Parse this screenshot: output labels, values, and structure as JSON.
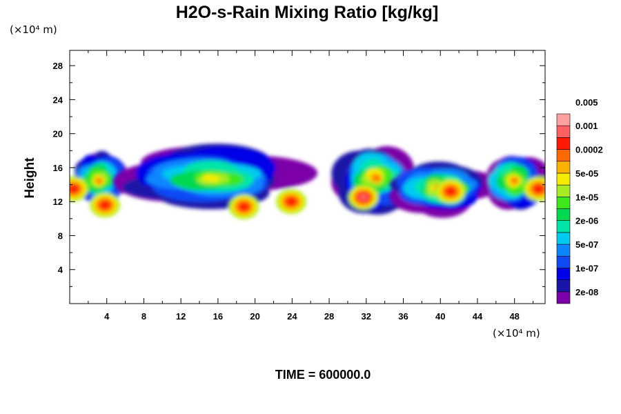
{
  "chart_data": {
    "type": "heatmap",
    "title": "H2O-s-Rain Mixing Ratio [kg/kg]",
    "x_units_label": "(×10⁴ m)",
    "y_units_label": "(×10⁴ m)",
    "ylabel": "Height",
    "xlabel": "",
    "time_label": "TIME = 600000.0",
    "x_ticks": [
      4,
      8,
      12,
      16,
      20,
      24,
      28,
      32,
      36,
      40,
      44,
      48
    ],
    "y_ticks": [
      4,
      8,
      12,
      16,
      20,
      24,
      28
    ],
    "xlim": [
      0,
      51.3
    ],
    "ylim": [
      0,
      29.8
    ],
    "grid": false,
    "colorbar": {
      "placement": "right",
      "colors": [
        "#7b00a8",
        "#1a15a8",
        "#0000e8",
        "#0f4af5",
        "#0a86ff",
        "#00caf0",
        "#00e5a8",
        "#00d850",
        "#3ce81a",
        "#a6ec22",
        "#f5ec00",
        "#fcb200",
        "#ff6a00",
        "#ff1a00",
        "#ff6060",
        "#ffa0a0"
      ],
      "labels": [
        "2e-08",
        "1e-07",
        "5e-07",
        "2e-06",
        "1e-05",
        "5e-05",
        "0.0002",
        "0.001",
        "0.005"
      ]
    },
    "regions": [
      {
        "x": [
          0,
          6.2
        ],
        "y": [
          11.2,
          17.6
        ],
        "peak_level": 12,
        "cores": [
          {
            "x": 0.4,
            "y": 13.5,
            "level": 13
          },
          {
            "x": 3.8,
            "y": 11.6,
            "level": 13
          }
        ]
      },
      {
        "x": [
          6,
          24.6
        ],
        "y": [
          10.9,
          18.5
        ],
        "peak_level": 10,
        "cores": [
          {
            "x": 18.8,
            "y": 11.4,
            "level": 13
          },
          {
            "x": 23.9,
            "y": 12.0,
            "level": 13
          }
        ]
      },
      {
        "x": [
          28.8,
          37.3
        ],
        "y": [
          11,
          18.6
        ],
        "peak_level": 12,
        "cores": [
          {
            "x": 31.7,
            "y": 12.5,
            "level": 14
          }
        ]
      },
      {
        "x": [
          34.6,
          45.3
        ],
        "y": [
          10.8,
          16.4
        ],
        "peak_level": 12,
        "cores": [
          {
            "x": 41.1,
            "y": 13.2,
            "level": 13
          }
        ]
      },
      {
        "x": [
          44.5,
          51.3
        ],
        "y": [
          11.2,
          17.8
        ],
        "peak_level": 12,
        "cores": [
          {
            "x": 50.6,
            "y": 13.5,
            "level": 13
          }
        ]
      }
    ]
  }
}
